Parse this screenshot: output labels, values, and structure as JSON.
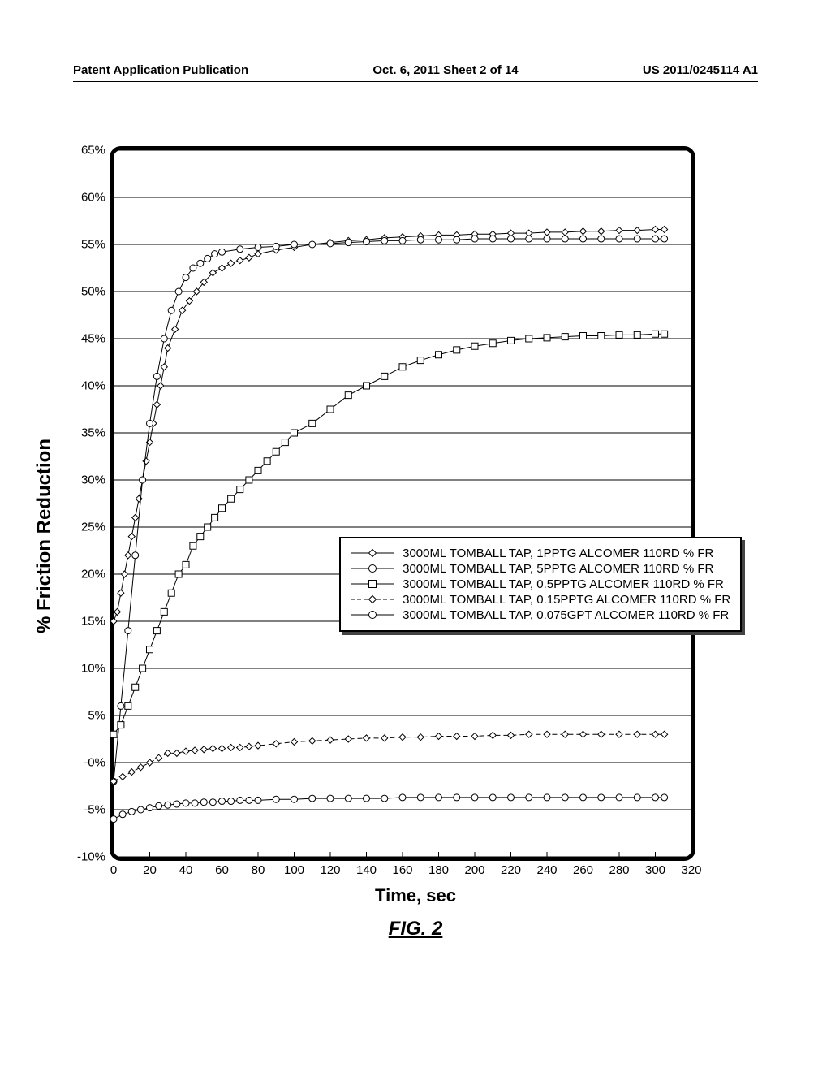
{
  "header": {
    "left": "Patent Application Publication",
    "mid": "Oct. 6, 2011  Sheet 2 of 14",
    "right": "US 2011/0245114 A1"
  },
  "chart": {
    "type": "scatter-line",
    "x_label": "Time, sec",
    "y_label": "% Friction Reduction",
    "fig_label": "FIG. 2",
    "background_color": "#ffffff",
    "grid_color": "#000000",
    "series_color": "#000000",
    "line_width": 1,
    "marker_size": 8,
    "xlim": [
      0,
      320
    ],
    "x_ticks": [
      0,
      20,
      40,
      60,
      80,
      100,
      120,
      140,
      160,
      180,
      200,
      220,
      240,
      260,
      280,
      300,
      320
    ],
    "ylim": [
      -10,
      65
    ],
    "y_ticks": [
      -10,
      -5,
      0,
      5,
      10,
      15,
      20,
      25,
      30,
      35,
      40,
      45,
      50,
      55,
      60,
      65
    ],
    "y_tick_labels": [
      "-10%",
      "-5%",
      "-0%",
      "5%",
      "10%",
      "15%",
      "20%",
      "25%",
      "30%",
      "35%",
      "40%",
      "45%",
      "50%",
      "55%",
      "60%",
      "65%"
    ],
    "legend": {
      "items": [
        {
          "marker": "diamond",
          "dash": "solid",
          "label": "3000ML TOMBALL TAP, 1PPTG ALCOMER 110RD % FR"
        },
        {
          "marker": "circle",
          "dash": "solid",
          "label": "3000ML TOMBALL TAP, 5PPTG ALCOMER 110RD % FR"
        },
        {
          "marker": "square",
          "dash": "solid",
          "label": "3000ML TOMBALL TAP, 0.5PPTG ALCOMER 110RD % FR"
        },
        {
          "marker": "diamond",
          "dash": "dashed",
          "label": "3000ML TOMBALL TAP, 0.15PPTG ALCOMER 110RD % FR"
        },
        {
          "marker": "circle",
          "dash": "solid",
          "label": "3000ML TOMBALL TAP, 0.075GPT ALCOMER 110RD % FR"
        }
      ]
    },
    "series": [
      {
        "name": "1PPTG",
        "marker": "diamond",
        "dash": "solid",
        "x": [
          0,
          2,
          4,
          6,
          8,
          10,
          12,
          14,
          16,
          18,
          20,
          22,
          24,
          26,
          28,
          30,
          34,
          38,
          42,
          46,
          50,
          55,
          60,
          65,
          70,
          75,
          80,
          90,
          100,
          110,
          120,
          130,
          140,
          150,
          160,
          170,
          180,
          190,
          200,
          210,
          220,
          230,
          240,
          250,
          260,
          270,
          280,
          290,
          300,
          305
        ],
        "y": [
          15,
          16,
          18,
          20,
          22,
          24,
          26,
          28,
          30,
          32,
          34,
          36,
          38,
          40,
          42,
          44,
          46,
          48,
          49,
          50,
          51,
          52,
          52.5,
          53,
          53.3,
          53.6,
          54,
          54.4,
          54.7,
          55,
          55.2,
          55.4,
          55.5,
          55.7,
          55.8,
          55.9,
          56,
          56,
          56.1,
          56.1,
          56.2,
          56.2,
          56.3,
          56.3,
          56.4,
          56.4,
          56.5,
          56.5,
          56.6,
          56.6
        ]
      },
      {
        "name": "5PPTG",
        "marker": "circle",
        "dash": "solid",
        "x": [
          0,
          4,
          8,
          12,
          16,
          20,
          24,
          28,
          32,
          36,
          40,
          44,
          48,
          52,
          56,
          60,
          70,
          80,
          90,
          100,
          110,
          120,
          130,
          140,
          150,
          160,
          170,
          180,
          190,
          200,
          210,
          220,
          230,
          240,
          250,
          260,
          270,
          280,
          290,
          300,
          305
        ],
        "y": [
          -2,
          6,
          14,
          22,
          30,
          36,
          41,
          45,
          48,
          50,
          51.5,
          52.5,
          53,
          53.5,
          54,
          54.2,
          54.5,
          54.7,
          54.8,
          55,
          55,
          55.1,
          55.2,
          55.3,
          55.4,
          55.4,
          55.5,
          55.5,
          55.5,
          55.6,
          55.6,
          55.6,
          55.6,
          55.6,
          55.6,
          55.6,
          55.6,
          55.6,
          55.6,
          55.6,
          55.6
        ]
      },
      {
        "name": "0.5PPTG",
        "marker": "square",
        "dash": "solid",
        "x": [
          0,
          4,
          8,
          12,
          16,
          20,
          24,
          28,
          32,
          36,
          40,
          44,
          48,
          52,
          56,
          60,
          65,
          70,
          75,
          80,
          85,
          90,
          95,
          100,
          110,
          120,
          130,
          140,
          150,
          160,
          170,
          180,
          190,
          200,
          210,
          220,
          230,
          240,
          250,
          260,
          270,
          280,
          290,
          300,
          305
        ],
        "y": [
          3,
          4,
          6,
          8,
          10,
          12,
          14,
          16,
          18,
          20,
          21,
          23,
          24,
          25,
          26,
          27,
          28,
          29,
          30,
          31,
          32,
          33,
          34,
          35,
          36,
          37.5,
          39,
          40,
          41,
          42,
          42.7,
          43.3,
          43.8,
          44.2,
          44.5,
          44.8,
          45,
          45.1,
          45.2,
          45.3,
          45.3,
          45.4,
          45.4,
          45.5,
          45.5
        ]
      },
      {
        "name": "0.15PPTG",
        "marker": "diamond",
        "dash": "dashed",
        "x": [
          0,
          5,
          10,
          15,
          20,
          25,
          30,
          35,
          40,
          45,
          50,
          55,
          60,
          65,
          70,
          75,
          80,
          90,
          100,
          110,
          120,
          130,
          140,
          150,
          160,
          170,
          180,
          190,
          200,
          210,
          220,
          230,
          240,
          250,
          260,
          270,
          280,
          290,
          300,
          305
        ],
        "y": [
          -2,
          -1.5,
          -1,
          -0.5,
          0,
          0.5,
          1,
          1,
          1.2,
          1.3,
          1.4,
          1.5,
          1.5,
          1.6,
          1.6,
          1.7,
          1.8,
          2,
          2.2,
          2.3,
          2.4,
          2.5,
          2.6,
          2.6,
          2.7,
          2.7,
          2.8,
          2.8,
          2.8,
          2.9,
          2.9,
          3,
          3,
          3,
          3,
          3,
          3,
          3,
          3,
          3
        ]
      },
      {
        "name": "0.075GPT",
        "marker": "circle",
        "dash": "solid",
        "x": [
          0,
          5,
          10,
          15,
          20,
          25,
          30,
          35,
          40,
          45,
          50,
          55,
          60,
          65,
          70,
          75,
          80,
          90,
          100,
          110,
          120,
          130,
          140,
          150,
          160,
          170,
          180,
          190,
          200,
          210,
          220,
          230,
          240,
          250,
          260,
          270,
          280,
          290,
          300,
          305
        ],
        "y": [
          -6,
          -5.5,
          -5.2,
          -5,
          -4.8,
          -4.6,
          -4.5,
          -4.4,
          -4.3,
          -4.3,
          -4.2,
          -4.2,
          -4.1,
          -4.1,
          -4,
          -4,
          -4,
          -3.9,
          -3.9,
          -3.8,
          -3.8,
          -3.8,
          -3.8,
          -3.8,
          -3.7,
          -3.7,
          -3.7,
          -3.7,
          -3.7,
          -3.7,
          -3.7,
          -3.7,
          -3.7,
          -3.7,
          -3.7,
          -3.7,
          -3.7,
          -3.7,
          -3.7,
          -3.7
        ]
      }
    ]
  }
}
